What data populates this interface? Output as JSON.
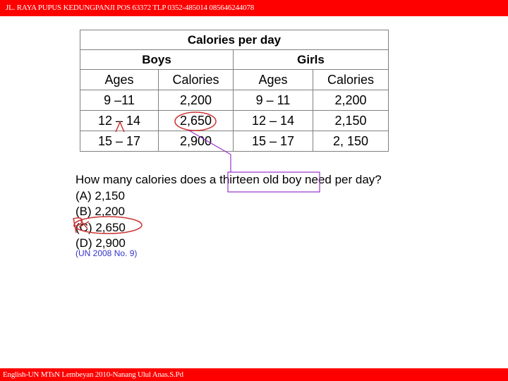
{
  "header": {
    "text": "JL. RAYA PUPUS KEDUNGPANJI POS 63372 TLP 0352-485014 085646244078"
  },
  "footer": {
    "text": "English-UN MTsN Lembeyan 2010-Nanang Ulul Anas.S.Pd"
  },
  "table": {
    "title": "Calories per day",
    "groups": [
      "Boys",
      "Girls"
    ],
    "columns": [
      "Ages",
      "Calories",
      "Ages",
      "Calories"
    ],
    "rows": [
      [
        "9 –11",
        "2,200",
        "9 – 11",
        "2,200"
      ],
      [
        "12 – 14",
        "2,650",
        "12 – 14",
        "2,150"
      ],
      [
        "15 – 17",
        "2,900",
        "15 – 17",
        "2, 150"
      ]
    ]
  },
  "question": {
    "text": "How many calories does a thirteen old boy need per day?",
    "options": [
      "(A) 2,150",
      "(B) 2,200",
      "(C) 2,650",
      "(D) 2,900"
    ],
    "source": "(UN 2008 No. 9)"
  },
  "colors": {
    "bar": "#ff0000",
    "annotation": "#cc3333",
    "highlight": "#9933cc"
  }
}
